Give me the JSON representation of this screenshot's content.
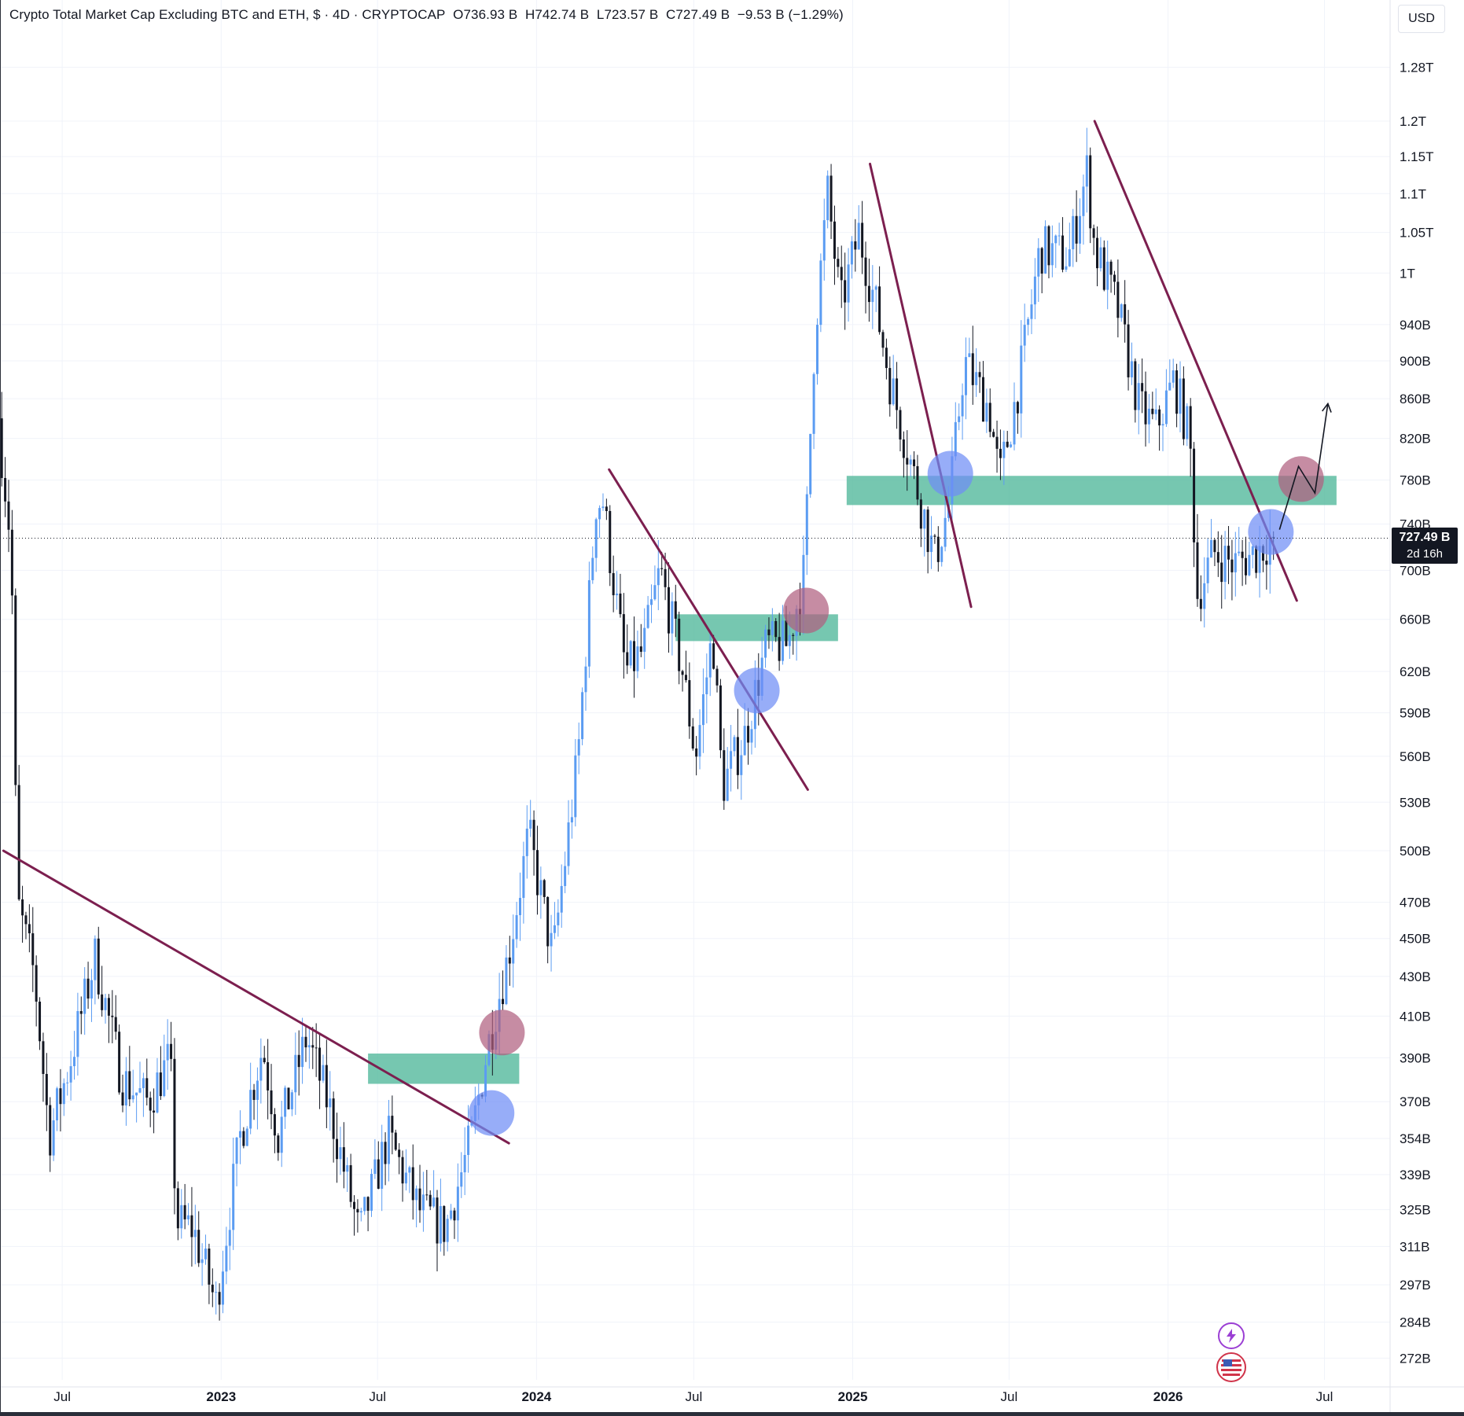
{
  "header": {
    "symbol_title": "Crypto Total Market Cap Excluding BTC and ETH, $ · 4D · CRYPTOCAP",
    "open": "O736.93 B",
    "high": "H742.74 B",
    "low": "L723.57 B",
    "close": "C727.49 B",
    "change": "−9.53 B (−1.29%)",
    "currency": "USD"
  },
  "last_price_tag": {
    "price": "727.49 B",
    "countdown": "2d 16h"
  },
  "colors": {
    "up_candle": "#5b9cf2",
    "down_candle": "#131722",
    "trendline": "#7c1f4f",
    "zone": "#4fb79a",
    "blue_marker": "#6f8ef5",
    "red_marker": "#b06080",
    "axis_text": "#131722",
    "grid": "#f0f3fa"
  },
  "icons": [
    "lightning-icon",
    "us-flag-icon"
  ],
  "chart_data": {
    "type": "candlestick",
    "timeframe": "4D",
    "scale": "log",
    "ylim": [
      265,
      1330
    ],
    "y_unit": "B",
    "y_tick_labels": [
      "1.28T",
      "1.2T",
      "1.15T",
      "1.1T",
      "1.05T",
      "1T",
      "940B",
      "900B",
      "860B",
      "820B",
      "780B",
      "740B",
      "700B",
      "660B",
      "620B",
      "590B",
      "560B",
      "530B",
      "500B",
      "470B",
      "450B",
      "430B",
      "410B",
      "390B",
      "370B",
      "354B",
      "339B",
      "325B",
      "311B",
      "297B",
      "284B",
      "272B"
    ],
    "y_tick_values": [
      1280,
      1200,
      1150,
      1100,
      1050,
      1000,
      940,
      900,
      860,
      820,
      780,
      740,
      700,
      660,
      620,
      590,
      560,
      530,
      500,
      470,
      450,
      430,
      410,
      390,
      370,
      354,
      339,
      325,
      311,
      297,
      284,
      272
    ],
    "xlim": [
      "2022-04-20",
      "2026-09-15"
    ],
    "x_tick_labels": [
      "Jul",
      "2023",
      "Jul",
      "2024",
      "Jul",
      "2025",
      "Jul",
      "2026",
      "Jul"
    ],
    "x_tick_dates": [
      "2022-07-01",
      "2023-01-01",
      "2023-07-01",
      "2024-01-01",
      "2024-07-01",
      "2025-01-01",
      "2025-07-01",
      "2026-01-01",
      "2026-07-01"
    ],
    "year_ticks": [
      "2023",
      "2024",
      "2025",
      "2026"
    ],
    "last_price": 727.49,
    "price_path": [
      [
        "2022-04-20",
        840
      ],
      [
        "2022-05-05",
        720
      ],
      [
        "2022-05-12",
        470
      ],
      [
        "2022-06-01",
        430
      ],
      [
        "2022-06-18",
        355
      ],
      [
        "2022-07-10",
        385
      ],
      [
        "2022-08-10",
        440
      ],
      [
        "2022-09-10",
        380
      ],
      [
        "2022-10-10",
        370
      ],
      [
        "2022-11-05",
        390
      ],
      [
        "2022-11-12",
        320
      ],
      [
        "2022-12-01",
        318
      ],
      [
        "2022-12-28",
        290
      ],
      [
        "2023-01-25",
        355
      ],
      [
        "2023-02-20",
        395
      ],
      [
        "2023-03-10",
        355
      ],
      [
        "2023-04-12",
        400
      ],
      [
        "2023-05-10",
        365
      ],
      [
        "2023-06-12",
        315
      ],
      [
        "2023-07-15",
        355
      ],
      [
        "2023-08-20",
        325
      ],
      [
        "2023-09-20",
        318
      ],
      [
        "2023-10-20",
        355
      ],
      [
        "2023-11-05",
        390
      ],
      [
        "2023-11-15",
        410
      ],
      [
        "2023-12-01",
        440
      ],
      [
        "2023-12-25",
        510
      ],
      [
        "2024-01-22",
        440
      ],
      [
        "2024-02-20",
        560
      ],
      [
        "2024-03-12",
        760
      ],
      [
        "2024-03-20",
        760
      ],
      [
        "2024-04-15",
        620
      ],
      [
        "2024-05-05",
        635
      ],
      [
        "2024-05-25",
        700
      ],
      [
        "2024-06-20",
        620
      ],
      [
        "2024-07-05",
        560
      ],
      [
        "2024-07-25",
        650
      ],
      [
        "2024-08-05",
        540
      ],
      [
        "2024-09-01",
        575
      ],
      [
        "2024-09-25",
        640
      ],
      [
        "2024-10-20",
        640
      ],
      [
        "2024-11-08",
        700
      ],
      [
        "2024-11-20",
        930
      ],
      [
        "2024-12-05",
        1100
      ],
      [
        "2024-12-20",
        960
      ],
      [
        "2025-01-10",
        1050
      ],
      [
        "2025-01-30",
        960
      ],
      [
        "2025-02-15",
        880
      ],
      [
        "2025-03-10",
        800
      ],
      [
        "2025-04-08",
        710
      ],
      [
        "2025-04-25",
        760
      ],
      [
        "2025-05-12",
        900
      ],
      [
        "2025-06-10",
        850
      ],
      [
        "2025-06-22",
        780
      ],
      [
        "2025-07-15",
        880
      ],
      [
        "2025-08-08",
        1030
      ],
      [
        "2025-09-10",
        1020
      ],
      [
        "2025-10-01",
        1130
      ],
      [
        "2025-10-10",
        1030
      ],
      [
        "2025-11-05",
        960
      ],
      [
        "2025-12-01",
        850
      ],
      [
        "2025-12-20",
        830
      ],
      [
        "2026-01-10",
        880
      ],
      [
        "2026-01-28",
        820
      ],
      [
        "2026-02-06",
        680
      ],
      [
        "2026-02-25",
        715
      ],
      [
        "2026-03-20",
        705
      ],
      [
        "2026-04-15",
        715
      ],
      [
        "2026-05-02",
        727.49
      ]
    ],
    "annotations": {
      "trendlines": [
        {
          "from": [
            "2022-04-24",
            500
          ],
          "to": [
            "2023-11-30",
            352
          ]
        },
        {
          "from": [
            "2024-03-25",
            790
          ],
          "to": [
            "2024-11-10",
            538
          ]
        },
        {
          "from": [
            "2025-01-21",
            1140
          ],
          "to": [
            "2025-05-18",
            670
          ]
        },
        {
          "from": [
            "2025-10-08",
            1200
          ],
          "to": [
            "2026-05-30",
            675
          ]
        }
      ],
      "zones": [
        {
          "from": "2023-06-20",
          "to": "2023-12-12",
          "top": 392,
          "bottom": 378
        },
        {
          "from": "2024-06-10",
          "to": "2024-12-15",
          "top": 664,
          "bottom": 643
        },
        {
          "from": "2024-12-25",
          "to": "2026-07-15",
          "top": 784,
          "bottom": 757
        }
      ],
      "circles": [
        {
          "date": "2023-11-10",
          "value": 365,
          "color": "blue"
        },
        {
          "date": "2023-11-22",
          "value": 402,
          "color": "red"
        },
        {
          "date": "2024-09-12",
          "value": 606,
          "color": "blue"
        },
        {
          "date": "2024-11-08",
          "value": 667,
          "color": "red"
        },
        {
          "date": "2025-04-24",
          "value": 786,
          "color": "blue"
        },
        {
          "date": "2026-04-30",
          "value": 733,
          "color": "blue"
        },
        {
          "date": "2026-06-04",
          "value": 781,
          "color": "red"
        }
      ],
      "projection_arrow": [
        [
          "2026-05-10",
          735
        ],
        [
          "2026-06-01",
          793
        ],
        [
          "2026-06-20",
          768
        ],
        [
          "2026-07-05",
          855
        ]
      ]
    }
  }
}
